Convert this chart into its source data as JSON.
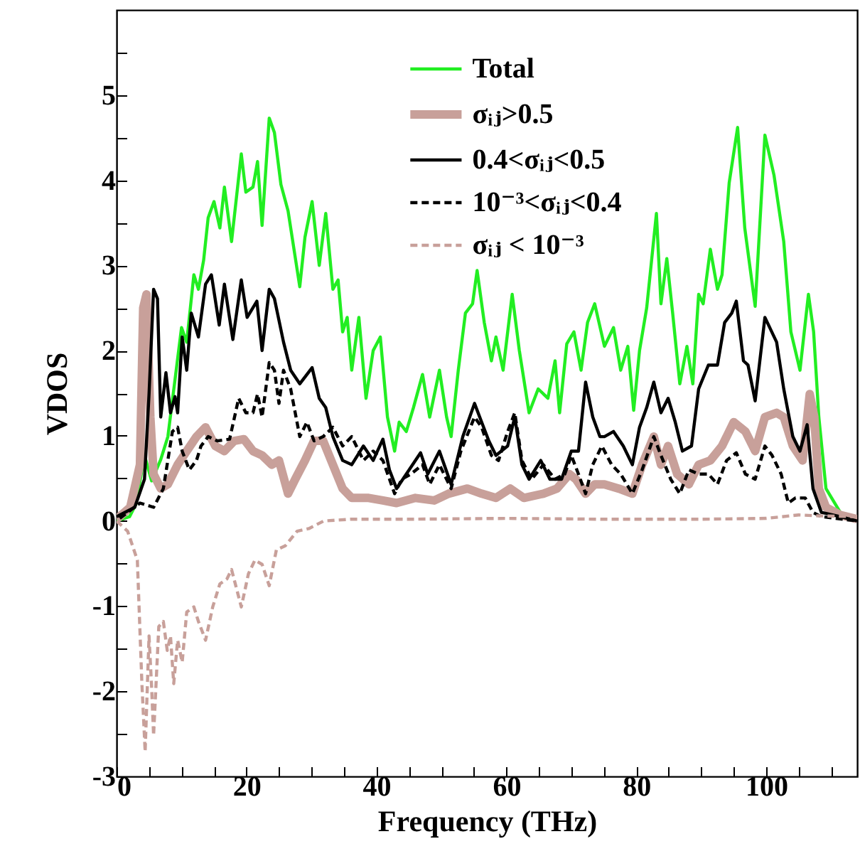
{
  "chart_data": {
    "type": "line",
    "xlabel": "Frequency (THz)",
    "ylabel": "VDOS",
    "xlim": [
      0,
      114
    ],
    "ylim": [
      -3,
      6
    ],
    "xticks": [
      0,
      {
        "value": 5,
        "label": null
      },
      20,
      {
        "value": 10,
        "label": null
      },
      {
        "value": 15,
        "label": null
      },
      {
        "value": 25,
        "label": null
      },
      {
        "value": 30,
        "label": null
      },
      {
        "value": 35,
        "label": null
      },
      40,
      {
        "value": 45,
        "label": null
      },
      {
        "value": 50,
        "label": null
      },
      {
        "value": 55,
        "label": null
      },
      60,
      {
        "value": 65,
        "label": null
      },
      {
        "value": 70,
        "label": null
      },
      {
        "value": 75,
        "label": null
      },
      80,
      {
        "value": 85,
        "label": null
      },
      {
        "value": 90,
        "label": null
      },
      {
        "value": 95,
        "label": null
      },
      100,
      {
        "value": 105,
        "label": null
      },
      {
        "value": 110,
        "label": null
      }
    ],
    "yticks": [
      -3,
      {
        "value": -2.5,
        "label": null
      },
      -2,
      {
        "value": -1.5,
        "label": null
      },
      -1,
      {
        "value": -0.5,
        "label": null
      },
      0,
      {
        "value": 0.5,
        "label": null
      },
      1,
      {
        "value": 1.5,
        "label": null
      },
      2,
      {
        "value": 2.5,
        "label": null
      },
      3,
      {
        "value": 3.5,
        "label": null
      },
      4,
      {
        "value": 4.5,
        "label": null
      },
      5,
      {
        "value": 5.5,
        "label": null
      }
    ],
    "grid": false,
    "legend": "top",
    "marker": "none",
    "series": [
      {
        "name": "Total",
        "color": "#22ee22",
        "line_style": "solid",
        "x": [
          0,
          2,
          3,
          4.3,
          5.4,
          6.8,
          7.9,
          10,
          10.8,
          11.9,
          12.6,
          13.4,
          14.1,
          15,
          15.9,
          16.6,
          17.7,
          19.2,
          19.9,
          21,
          21.7,
          22.4,
          23.5,
          24.3,
          25.3,
          26.4,
          28.2,
          29,
          30.1,
          31.2,
          32.2,
          33.3,
          34.1,
          34.8,
          35.5,
          36.2,
          37.3,
          38.4,
          39.5,
          40.6,
          41.7,
          42.8,
          43.5,
          44.6,
          45.7,
          47.1,
          48.2,
          49.7,
          50.8,
          51.5,
          52.6,
          53.7,
          54.8,
          55.5,
          56.6,
          57.7,
          58.4,
          59.5,
          60.9,
          62,
          63.5,
          64.9,
          66.4,
          67.5,
          68.2,
          69.3,
          70.4,
          71.5,
          72.5,
          73.6,
          75.1,
          76.5,
          77.6,
          78.7,
          79.6,
          80.5,
          81.6,
          83.1,
          83.8,
          84.7,
          85.6,
          86.7,
          87.8,
          88.7,
          89.6,
          90.3,
          91.4,
          92.5,
          93.2,
          94.3,
          95.6,
          96.7,
          98.3,
          99.8,
          101.2,
          102.7,
          103.8,
          105.2,
          106.5,
          107.3,
          108.1,
          109.2,
          111.4
        ],
        "values": [
          0,
          0.05,
          0.2,
          0.77,
          0.47,
          0.72,
          0.99,
          2.27,
          2.1,
          2.89,
          2.72,
          3.06,
          3.56,
          3.75,
          3.44,
          3.92,
          3.28,
          4.31,
          3.86,
          3.92,
          4.22,
          3.47,
          4.73,
          4.56,
          3.95,
          3.64,
          2.75,
          3.33,
          3.75,
          3.0,
          3.61,
          2.72,
          2.83,
          2.22,
          2.39,
          1.77,
          2.39,
          1.44,
          2.0,
          2.16,
          1.22,
          0.82,
          1.16,
          1.05,
          1.33,
          1.72,
          1.22,
          1.77,
          1.22,
          0.99,
          1.77,
          2.44,
          2.55,
          2.94,
          2.33,
          1.88,
          2.16,
          1.77,
          2.66,
          2.0,
          1.27,
          1.55,
          1.44,
          1.88,
          1.27,
          2.08,
          2.22,
          1.77,
          2.33,
          2.55,
          2.05,
          2.27,
          1.77,
          2.05,
          1.3,
          2.0,
          2.5,
          3.61,
          2.55,
          3.08,
          2.44,
          1.61,
          2.05,
          1.61,
          2.66,
          2.55,
          3.19,
          2.72,
          2.89,
          3.97,
          4.62,
          3.44,
          2.52,
          4.53,
          4.06,
          3.28,
          2.22,
          1.77,
          2.66,
          2.22,
          1.22,
          0.38,
          0.1
        ]
      },
      {
        "name": "σᵢⱼ>0.5",
        "color": "#c8a09a",
        "line_style": "solid",
        "x": [
          0,
          2.1,
          3.6,
          4.1,
          4.6,
          5.2,
          5.7,
          6.8,
          7.9,
          9.4,
          10.8,
          12.3,
          13.7,
          15.2,
          16.6,
          18.1,
          19.6,
          21,
          22.4,
          23.9,
          25,
          26.4,
          27.5,
          29,
          30.4,
          31.8,
          33.3,
          34.8,
          36.2,
          38.8,
          41,
          43.1,
          46,
          48.9,
          51.1,
          54,
          56.2,
          58.4,
          60.6,
          62.7,
          65.7,
          67.8,
          69.7,
          70.7,
          72.2,
          73.6,
          75.1,
          77.3,
          79.4,
          80.9,
          82.7,
          83.8,
          84.9,
          86.3,
          88.1,
          89.6,
          91.4,
          93.2,
          95,
          96.8,
          98.3,
          99.8,
          101.6,
          102.7,
          104.1,
          105.6,
          106.7,
          107.4,
          108.1,
          109.2,
          111.4,
          114
        ],
        "values": [
          0.02,
          0.16,
          0.66,
          2.5,
          2.66,
          1.22,
          0.55,
          0.38,
          0.43,
          0.66,
          0.82,
          0.99,
          1.1,
          0.88,
          0.82,
          0.94,
          0.96,
          0.82,
          0.77,
          0.66,
          0.71,
          0.32,
          0.49,
          0.71,
          0.94,
          0.94,
          0.66,
          0.38,
          0.27,
          0.27,
          0.24,
          0.21,
          0.27,
          0.24,
          0.32,
          0.38,
          0.32,
          0.27,
          0.38,
          0.27,
          0.32,
          0.38,
          0.55,
          0.49,
          0.32,
          0.43,
          0.43,
          0.38,
          0.32,
          0.66,
          0.99,
          0.66,
          0.88,
          0.55,
          0.43,
          0.66,
          0.71,
          0.88,
          1.16,
          1.05,
          0.82,
          1.22,
          1.27,
          1.22,
          0.88,
          0.71,
          1.49,
          1.22,
          0.38,
          0.16,
          0.07,
          0.02
        ]
      },
      {
        "name": "0.4<σᵢⱼ<0.5",
        "color": "#000000",
        "line_style": "solid",
        "x": [
          0,
          2.8,
          4.3,
          5,
          5.7,
          6.3,
          6.8,
          7.6,
          8.3,
          9,
          9.4,
          10.1,
          10.8,
          11.5,
          12.6,
          13.7,
          14.6,
          15.8,
          16.6,
          17.9,
          19.2,
          20.1,
          21.6,
          22.4,
          23.5,
          24.3,
          25.7,
          26.8,
          28.2,
          30.1,
          31.2,
          32.2,
          33.3,
          34.8,
          36.2,
          38,
          39.5,
          41,
          42,
          43.1,
          44.6,
          46.8,
          47.9,
          49.7,
          51.5,
          53.3,
          55.1,
          56.2,
          57.3,
          58.4,
          60.2,
          61.3,
          62.4,
          63.5,
          65.3,
          66.7,
          68.5,
          70,
          71.1,
          72.2,
          73.3,
          74.4,
          75.1,
          76.5,
          78,
          79.4,
          80.5,
          81.6,
          82.7,
          83.8,
          84.9,
          86,
          87.1,
          88.5,
          89.6,
          91.1,
          92.5,
          93.6,
          94.7,
          95.4,
          96.5,
          97.2,
          98.3,
          99.8,
          101.6,
          102.7,
          104.1,
          105.2,
          106.3,
          107.2,
          108.5,
          111.4,
          114
        ],
        "values": [
          0.05,
          0.16,
          0.49,
          1.49,
          2.72,
          2.61,
          1.22,
          1.74,
          1.27,
          1.46,
          1.27,
          2.16,
          1.77,
          2.44,
          2.16,
          2.78,
          2.89,
          2.3,
          2.78,
          2.13,
          2.83,
          2.39,
          2.58,
          2.0,
          2.72,
          2.61,
          2.1,
          1.77,
          1.61,
          1.8,
          1.44,
          1.33,
          0.99,
          0.71,
          0.66,
          0.88,
          0.71,
          0.96,
          0.6,
          0.38,
          0.55,
          0.8,
          0.55,
          0.82,
          0.43,
          0.99,
          1.38,
          1.16,
          0.94,
          0.77,
          0.88,
          1.22,
          0.66,
          0.49,
          0.71,
          0.49,
          0.49,
          0.82,
          0.82,
          1.63,
          1.22,
          0.99,
          0.99,
          1.05,
          0.88,
          0.66,
          1.1,
          1.33,
          1.63,
          1.27,
          1.44,
          1.16,
          0.82,
          0.88,
          1.55,
          1.83,
          1.83,
          2.33,
          2.44,
          2.58,
          1.88,
          1.83,
          1.41,
          2.39,
          2.1,
          1.55,
          0.99,
          0.82,
          1.13,
          0.38,
          0.1,
          0.05,
          0
        ]
      },
      {
        "name": "10⁻³<σᵢⱼ<0.4",
        "color": "#000000",
        "line_style": "dashed",
        "x": [
          0.5,
          3.6,
          5.7,
          7.2,
          8.6,
          9.4,
          10.1,
          11.2,
          12.3,
          13,
          14.1,
          15.5,
          17.4,
          18.8,
          19.9,
          21,
          21.7,
          22.4,
          23.5,
          24.3,
          25,
          25.7,
          26.8,
          28.2,
          29.3,
          30.4,
          31.8,
          33.3,
          34.8,
          36.2,
          38,
          39.5,
          41,
          42.8,
          43.9,
          45.3,
          47.1,
          48.2,
          49.7,
          51.5,
          53,
          55.1,
          56.2,
          57.7,
          58.8,
          60.2,
          61.3,
          62.4,
          63.9,
          65.7,
          67.5,
          69,
          70,
          71.1,
          72.2,
          73.3,
          74.7,
          76.2,
          77.6,
          79.4,
          80.9,
          82.7,
          83.8,
          85.3,
          86.7,
          88.1,
          89.6,
          91.1,
          92.5,
          93.9,
          95.4,
          96.8,
          98.3,
          99.8,
          100.9,
          102.3,
          103.4,
          104.5,
          106,
          107.2,
          108.5,
          114
        ],
        "values": [
          0.03,
          0.21,
          0.16,
          0.38,
          1.05,
          1.1,
          0.82,
          0.6,
          0.71,
          0.88,
          0.99,
          0.94,
          0.96,
          1.44,
          1.27,
          1.27,
          1.49,
          1.22,
          1.86,
          1.77,
          1.38,
          1.77,
          1.55,
          0.99,
          1.16,
          0.94,
          0.99,
          1.1,
          0.88,
          0.99,
          0.71,
          0.82,
          0.71,
          0.32,
          0.49,
          0.55,
          0.66,
          0.43,
          0.66,
          0.38,
          0.82,
          1.22,
          1.1,
          0.77,
          0.71,
          1.05,
          1.27,
          0.71,
          0.49,
          0.66,
          0.49,
          0.55,
          0.77,
          0.55,
          0.32,
          0.66,
          0.88,
          0.66,
          0.55,
          0.32,
          0.6,
          0.99,
          0.77,
          0.49,
          0.32,
          0.6,
          0.55,
          0.55,
          0.43,
          0.71,
          0.8,
          0.55,
          0.49,
          0.88,
          0.77,
          0.55,
          0.21,
          0.27,
          0.27,
          0.1,
          0.05,
          0
        ]
      },
      {
        "name": "σᵢⱼ < 10⁻³",
        "color": "#c8a09a",
        "line_style": "dashed",
        "x": [
          0,
          1.7,
          3.2,
          3.9,
          4.4,
          5,
          5.4,
          5.7,
          6.5,
          7.2,
          7.8,
          8.3,
          8.8,
          9.4,
          10.1,
          10.8,
          11.9,
          12.6,
          13.7,
          14.8,
          15.9,
          17,
          17.7,
          19.2,
          20.3,
          21.3,
          22.4,
          23.5,
          24.6,
          26,
          27.8,
          29.6,
          31.9,
          36,
          45,
          60,
          75,
          90,
          100,
          105,
          108,
          114
        ],
        "values": [
          0,
          -0.12,
          -0.46,
          -1.91,
          -2.71,
          -1.35,
          -1.96,
          -2.52,
          -1.24,
          -1.18,
          -1.52,
          -1.35,
          -1.91,
          -1.4,
          -1.66,
          -1.07,
          -1.01,
          -1.18,
          -1.4,
          -1.01,
          -0.74,
          -0.68,
          -0.57,
          -1.01,
          -0.62,
          -0.46,
          -0.51,
          -0.76,
          -0.34,
          -0.29,
          -0.12,
          -0.09,
          0,
          0.02,
          0.02,
          0.03,
          0.02,
          0.02,
          0.03,
          0.07,
          0.06,
          0.05
        ]
      }
    ]
  }
}
